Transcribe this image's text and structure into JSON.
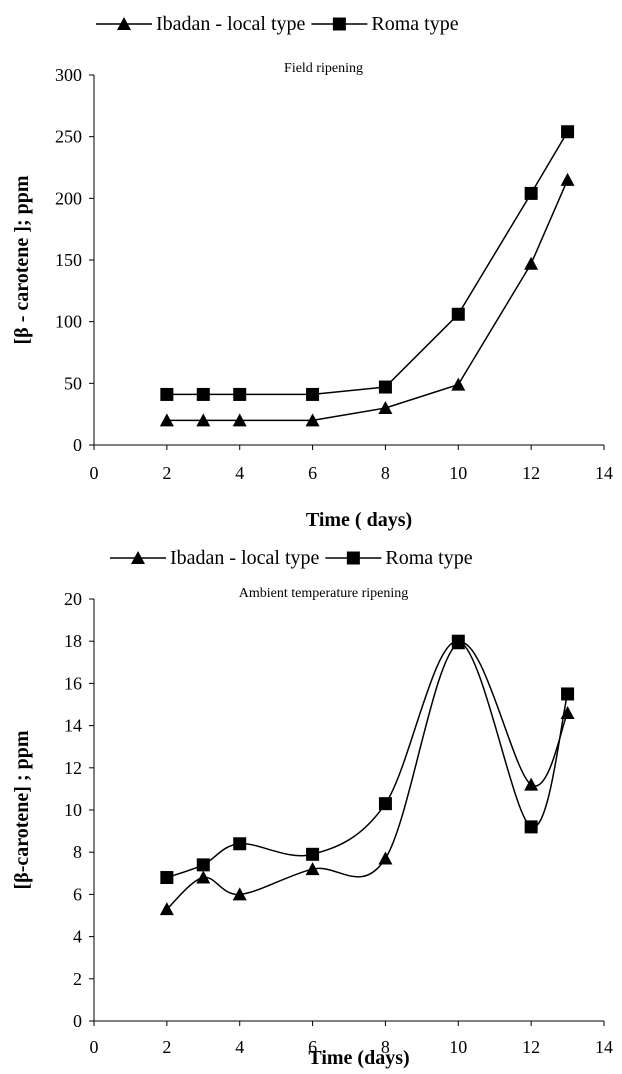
{
  "chart_data": [
    {
      "type": "line",
      "title": "Field ripening",
      "xlabel": "Time ( days)",
      "ylabel": "[β - carotene ]; ppm",
      "xlim": [
        0,
        14
      ],
      "ylim": [
        0,
        300
      ],
      "xticks": [
        0,
        2,
        4,
        6,
        8,
        10,
        12,
        14
      ],
      "yticks": [
        0,
        50,
        100,
        150,
        200,
        250,
        300
      ],
      "legend_position": "top",
      "smooth": false,
      "series": [
        {
          "name": "Ibadan - local type",
          "marker": "triangle",
          "x": [
            2,
            3,
            4,
            6,
            8,
            10,
            12,
            13
          ],
          "y": [
            20,
            20,
            20,
            20,
            30,
            49,
            147,
            215
          ]
        },
        {
          "name": "Roma type",
          "marker": "square",
          "x": [
            2,
            3,
            4,
            6,
            8,
            10,
            12,
            13
          ],
          "y": [
            41,
            41,
            41,
            41,
            47,
            106,
            204,
            254
          ]
        }
      ]
    },
    {
      "type": "line",
      "title": "Ambient temperature ripening",
      "xlabel": "Time (days)",
      "ylabel": "[β-carotene] ; ppm",
      "xlim": [
        0,
        14
      ],
      "ylim": [
        0,
        20
      ],
      "xticks": [
        0,
        2,
        4,
        6,
        8,
        10,
        12,
        14
      ],
      "yticks": [
        0,
        2,
        4,
        6,
        8,
        10,
        12,
        14,
        16,
        18,
        20
      ],
      "legend_position": "top",
      "smooth": true,
      "series": [
        {
          "name": "Ibadan - local type",
          "marker": "triangle",
          "x": [
            2,
            3,
            4,
            6,
            8,
            10,
            12,
            13
          ],
          "y": [
            5.3,
            6.8,
            6.0,
            7.2,
            7.7,
            17.9,
            11.2,
            14.6
          ]
        },
        {
          "name": "Roma type",
          "marker": "square",
          "x": [
            2,
            3,
            4,
            6,
            8,
            10,
            12,
            13
          ],
          "y": [
            6.8,
            7.4,
            8.4,
            7.9,
            10.3,
            18.0,
            9.2,
            15.5
          ]
        }
      ]
    }
  ]
}
